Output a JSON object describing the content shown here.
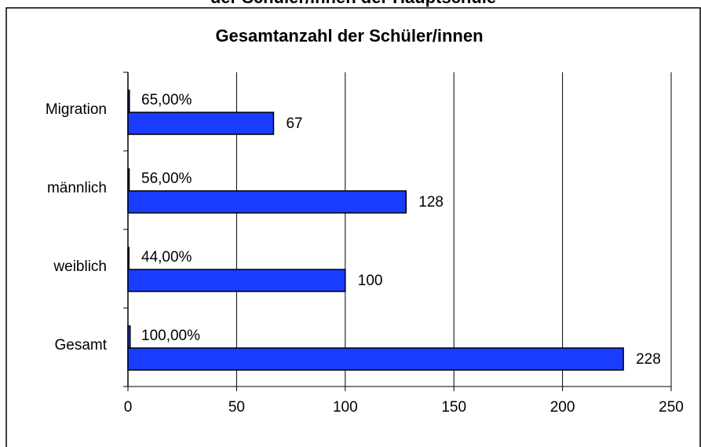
{
  "header": {
    "text": "der Schüler/innen der Hauptschule"
  },
  "chart_data": {
    "type": "bar",
    "orientation": "horizontal",
    "title": "Gesamtanzahl der Schüler/innen",
    "categories": [
      "Migration",
      "männlich",
      "weiblich",
      "Gesamt"
    ],
    "series": [
      {
        "color": "#1a3cff",
        "values": [
          0.65,
          0.56,
          0.44,
          1.0
        ],
        "value_labels": [
          "65,00%",
          "56,00%",
          "44,00%",
          "100,00%"
        ]
      },
      {
        "color": "#1a3cff",
        "values": [
          67,
          128,
          100,
          228
        ]
      }
    ],
    "xlim": [
      0,
      250
    ],
    "xticks": [
      0,
      50,
      100,
      150,
      200,
      250
    ],
    "grid": true
  }
}
